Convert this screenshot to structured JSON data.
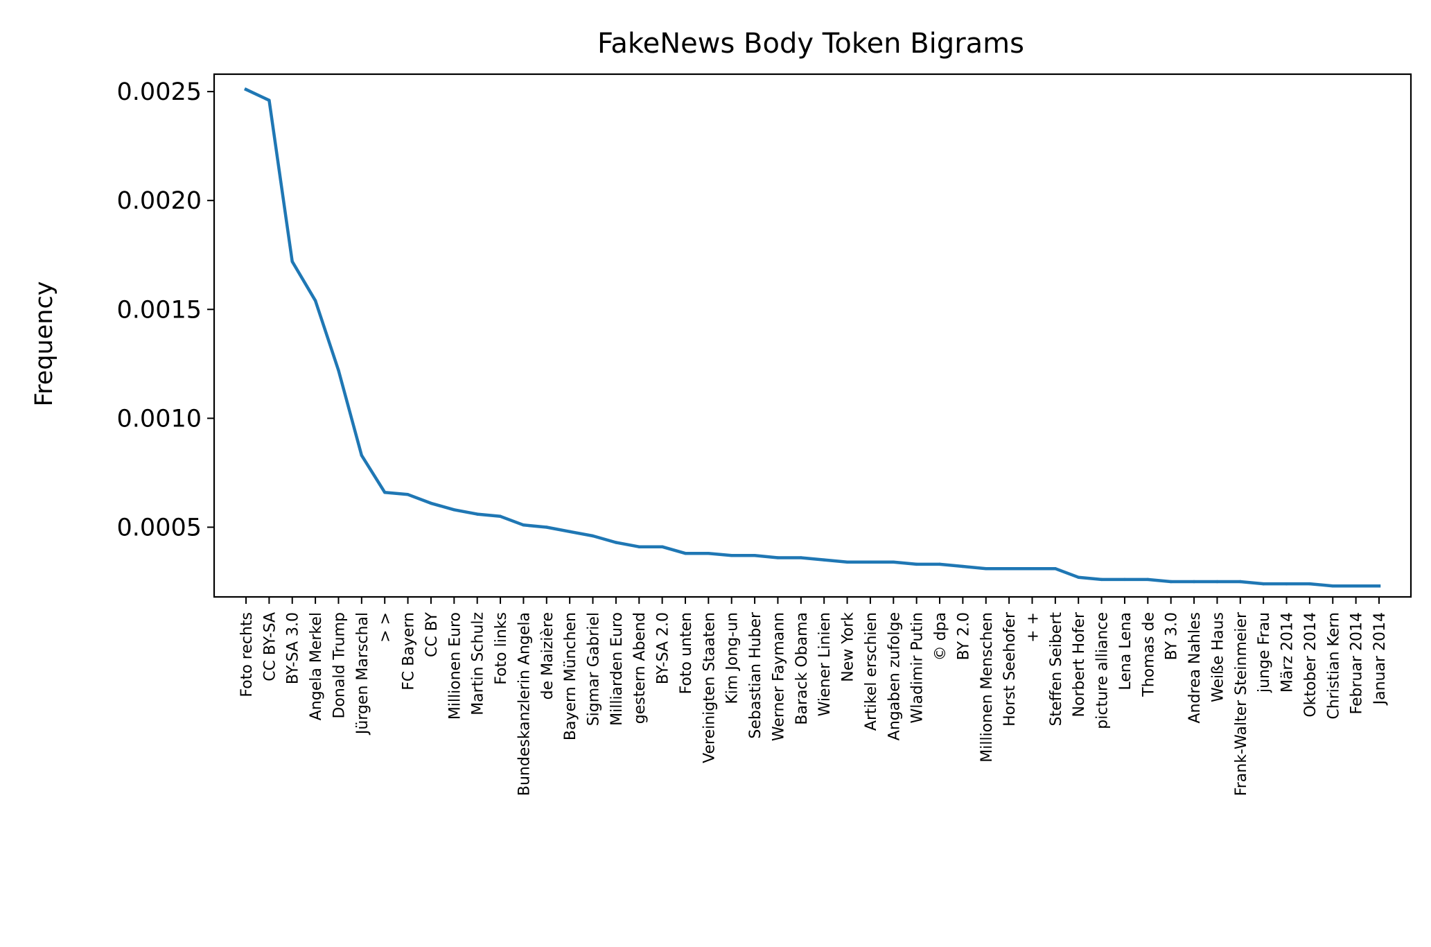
{
  "chart_data": {
    "type": "line",
    "title": "FakeNews Body Token Bigrams",
    "xlabel": "",
    "ylabel": "Frequency",
    "ylim": [
      0.00018,
      0.00258
    ],
    "yticks": [
      0.0005,
      0.001,
      0.0015,
      0.002,
      0.0025
    ],
    "ytick_labels": [
      "0.0005",
      "0.0010",
      "0.0015",
      "0.0020",
      "0.0025"
    ],
    "grid": false,
    "line_color": "#1f77b4",
    "categories": [
      "Foto rechts",
      "CC BY-SA",
      "BY-SA 3.0",
      "Angela Merkel",
      "Donald Trump",
      "Jürgen Marschal",
      "> >",
      "FC Bayern",
      "CC BY",
      "Millionen Euro",
      "Martin Schulz",
      "Foto links",
      "Bundeskanzlerin Angela",
      "de Maizière",
      "Bayern München",
      "Sigmar Gabriel",
      "Milliarden Euro",
      "gestern Abend",
      "BY-SA 2.0",
      "Foto unten",
      "Vereinigten Staaten",
      "Kim Jong-un",
      "Sebastian Huber",
      "Werner Faymann",
      "Barack Obama",
      "Wiener Linien",
      "New York",
      "Artikel erschien",
      "Angaben zufolge",
      "Wladimir Putin",
      "© dpa",
      "BY 2.0",
      "Millionen Menschen",
      "Horst Seehofer",
      "+ +",
      "Steffen Seibert",
      "Norbert Hofer",
      "picture alliance",
      "Lena Lena",
      "Thomas de",
      "BY 3.0",
      "Andrea Nahles",
      "Weiße Haus",
      "Frank-Walter Steinmeier",
      "junge Frau",
      "März 2014",
      "Oktober 2014",
      "Christian Kern",
      "Februar 2014",
      "Januar 2014"
    ],
    "values": [
      0.00251,
      0.00246,
      0.00172,
      0.00154,
      0.00122,
      0.00083,
      0.00066,
      0.00065,
      0.00061,
      0.00058,
      0.00056,
      0.00055,
      0.00051,
      0.0005,
      0.00048,
      0.00046,
      0.00043,
      0.00041,
      0.00041,
      0.00038,
      0.00038,
      0.00037,
      0.00037,
      0.00036,
      0.00036,
      0.00035,
      0.00034,
      0.00034,
      0.00034,
      0.00033,
      0.00033,
      0.00032,
      0.00031,
      0.00031,
      0.00031,
      0.00031,
      0.00027,
      0.00026,
      0.00026,
      0.00026,
      0.00025,
      0.00025,
      0.00025,
      0.00025,
      0.00024,
      0.00024,
      0.00024,
      0.00023,
      0.00023,
      0.00023
    ]
  }
}
